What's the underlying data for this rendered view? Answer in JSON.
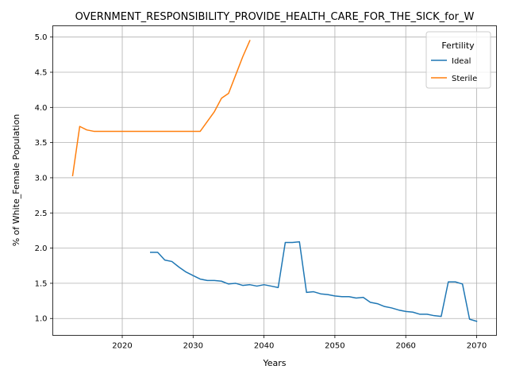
{
  "chart_data": {
    "type": "line",
    "title": "OVERNMENT_RESPONSIBILITY_PROVIDE_HEALTH_CARE_FOR_THE_SICK_for_W",
    "xlabel": "Years",
    "ylabel": "% of White_Female Population",
    "xlim": [
      2010.2,
      2072.8
    ],
    "ylim": [
      0.76,
      5.16
    ],
    "x_ticks": [
      2020,
      2030,
      2040,
      2050,
      2060,
      2070
    ],
    "y_ticks": [
      1.0,
      1.5,
      2.0,
      2.5,
      3.0,
      3.5,
      4.0,
      4.5,
      5.0
    ],
    "y_tick_labels": [
      "1.0",
      "1.5",
      "2.0",
      "2.5",
      "3.0",
      "3.5",
      "4.0",
      "4.5",
      "5.0"
    ],
    "grid": true,
    "legend": {
      "title": "Fertility",
      "placement": "top-right"
    },
    "series": [
      {
        "name": "Ideal",
        "color": "#1f77b4",
        "x": [
          2024,
          2025,
          2026,
          2027,
          2028,
          2029,
          2030,
          2031,
          2032,
          2033,
          2034,
          2035,
          2036,
          2037,
          2038,
          2039,
          2040,
          2041,
          2042,
          2043,
          2044,
          2045,
          2046,
          2047,
          2048,
          2049,
          2050,
          2051,
          2052,
          2053,
          2054,
          2055,
          2056,
          2057,
          2058,
          2059,
          2060,
          2061,
          2062,
          2063,
          2064,
          2065,
          2066,
          2067,
          2068,
          2069,
          2070
        ],
        "values": [
          1.94,
          1.94,
          1.83,
          1.81,
          1.73,
          1.66,
          1.61,
          1.56,
          1.54,
          1.54,
          1.53,
          1.49,
          1.5,
          1.47,
          1.48,
          1.46,
          1.48,
          1.46,
          1.44,
          2.08,
          2.08,
          2.09,
          1.37,
          1.38,
          1.35,
          1.34,
          1.32,
          1.31,
          1.31,
          1.29,
          1.3,
          1.23,
          1.21,
          1.17,
          1.15,
          1.12,
          1.1,
          1.09,
          1.06,
          1.06,
          1.04,
          1.03,
          1.52,
          1.52,
          1.49,
          0.99,
          0.96
        ]
      },
      {
        "name": "Sterile",
        "color": "#ff7f0e",
        "x": [
          2013,
          2014,
          2015,
          2016,
          2017,
          2018,
          2019,
          2020,
          2021,
          2022,
          2023,
          2024,
          2025,
          2026,
          2027,
          2028,
          2029,
          2030,
          2031,
          2032,
          2033,
          2034,
          2035,
          2036,
          2037,
          2038
        ],
        "values": [
          3.03,
          3.73,
          3.68,
          3.66,
          3.66,
          3.66,
          3.66,
          3.66,
          3.66,
          3.66,
          3.66,
          3.66,
          3.66,
          3.66,
          3.66,
          3.66,
          3.66,
          3.66,
          3.66,
          3.8,
          3.94,
          4.13,
          4.2,
          4.46,
          4.72,
          4.95
        ]
      }
    ]
  }
}
